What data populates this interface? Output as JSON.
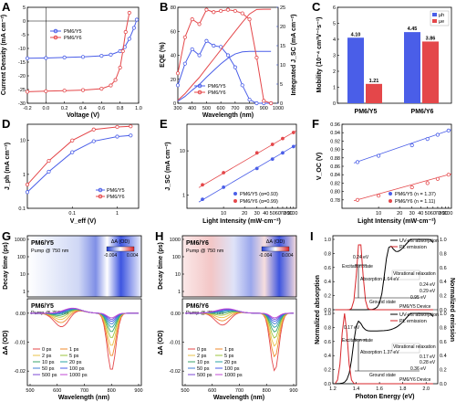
{
  "colors": {
    "pm6y5": "#4a5ee8",
    "pm6y6": "#e4474a"
  },
  "panels": [
    "A",
    "B",
    "C",
    "D",
    "E",
    "F",
    "G",
    "H",
    "I"
  ],
  "chart_data": [
    {
      "id": "A",
      "type": "line",
      "xlabel": "Voltage (V)",
      "ylabel": "Current Density (mA cm⁻²)",
      "xlim": [
        -0.2,
        1.0
      ],
      "ylim": [
        -30,
        5
      ],
      "xticks": [
        "-0.2",
        "0.0",
        "0.2",
        "0.4",
        "0.6",
        "0.8",
        "1.0"
      ],
      "yticks": [
        "5",
        "0",
        "-5",
        "-10",
        "-15",
        "-20",
        "-25",
        "-30"
      ],
      "series": [
        {
          "name": "PM6/Y5",
          "x": [
            -0.2,
            0,
            0.2,
            0.4,
            0.6,
            0.7,
            0.8,
            0.85,
            0.9,
            0.95,
            0.98
          ],
          "y": [
            -13.6,
            -13.5,
            -13.3,
            -13.1,
            -12.7,
            -12.3,
            -11,
            -9.5,
            -6.5,
            -2.5,
            0.5
          ]
        },
        {
          "name": "PM6/Y6",
          "x": [
            -0.2,
            0,
            0.2,
            0.4,
            0.6,
            0.7,
            0.75,
            0.8,
            0.83,
            0.86,
            0.9
          ],
          "y": [
            -25.8,
            -25.6,
            -25.4,
            -25.2,
            -24.7,
            -23.5,
            -21.5,
            -17,
            -11,
            -4,
            3
          ]
        }
      ]
    },
    {
      "id": "B",
      "type": "line",
      "xlabel": "Wavelength (nm)",
      "ylabel": "EQE (%)",
      "y2label": "Integrated J_SC (mA cm⁻²)",
      "xlim": [
        300,
        1000
      ],
      "ylim": [
        0,
        80
      ],
      "y2lim": [
        0,
        25
      ],
      "xticks": [
        "300",
        "400",
        "500",
        "600",
        "700",
        "800",
        "900",
        "1000"
      ],
      "yticks": [
        "0",
        "20",
        "40",
        "60",
        "80"
      ],
      "y2ticks": [
        "0",
        "5",
        "10",
        "15",
        "20",
        "25"
      ],
      "series": [
        {
          "name": "PM6/Y5",
          "x": [
            300,
            350,
            400,
            450,
            500,
            550,
            600,
            650,
            700,
            750,
            800,
            850,
            900,
            950
          ],
          "y": [
            15,
            33,
            45,
            40,
            52,
            48,
            47,
            40,
            30,
            15,
            3,
            0,
            0,
            0
          ]
        },
        {
          "name": "PM6/Y6",
          "x": [
            300,
            350,
            400,
            450,
            500,
            550,
            600,
            650,
            700,
            750,
            800,
            850,
            900,
            950
          ],
          "y": [
            25,
            55,
            70,
            66,
            78,
            76,
            77,
            78,
            77,
            75,
            70,
            38,
            2,
            0
          ]
        }
      ]
    },
    {
      "id": "C",
      "type": "bar",
      "ylabel": "Mobility (10⁻⁴ cm²V⁻¹s⁻¹)",
      "categories": [
        "PM6/Y5",
        "PM6/Y6"
      ],
      "ylim": [
        0,
        6
      ],
      "yticks": [
        "0",
        "1",
        "2",
        "3",
        "4",
        "5",
        "6"
      ],
      "series": [
        {
          "name": "μh",
          "values": [
            4.1,
            4.45
          ]
        },
        {
          "name": "μe",
          "values": [
            1.21,
            3.86
          ]
        }
      ]
    },
    {
      "id": "D",
      "type": "line",
      "xlabel": "V_eff (V)",
      "ylabel": "J_ph (mA cm⁻²)",
      "xlim": [
        0.01,
        3
      ],
      "ylim": [
        0.1,
        30
      ],
      "scale": "log-log",
      "xticks": [
        "0.1",
        "1"
      ],
      "yticks": [
        "0.1",
        "1",
        "10"
      ],
      "series": [
        {
          "name": "PM6/Y5",
          "x": [
            0.01,
            0.03,
            0.1,
            0.3,
            1,
            2
          ],
          "y": [
            0.3,
            1.2,
            4.5,
            9.5,
            13,
            14
          ]
        },
        {
          "name": "PM6/Y6",
          "x": [
            0.01,
            0.03,
            0.1,
            0.3,
            1,
            2
          ],
          "y": [
            0.5,
            2.5,
            10,
            21,
            25,
            26
          ]
        }
      ]
    },
    {
      "id": "E",
      "type": "scatter",
      "xlabel": "Light Intensity (mW·cm⁻²)",
      "ylabel": "J_SC (mA cm⁻²)",
      "xlim": [
        3,
        110
      ],
      "ylim": [
        0.5,
        40
      ],
      "scale": "log-log",
      "xticks": [
        "10",
        "20",
        "30",
        "40",
        "50",
        "60",
        "70",
        "80",
        "90",
        "100"
      ],
      "yticks": [
        "1",
        "10"
      ],
      "series": [
        {
          "name": "PM6/Y5 (α=0.93)",
          "x": [
            5,
            10,
            30,
            50,
            70,
            100
          ],
          "y": [
            0.8,
            1.5,
            4,
            6.5,
            9,
            12.5
          ]
        },
        {
          "name": "PM6/Y6 (α=0.99)",
          "x": [
            5,
            10,
            30,
            50,
            70,
            100
          ],
          "y": [
            1.7,
            3.2,
            9,
            14,
            19,
            26
          ]
        }
      ]
    },
    {
      "id": "F",
      "type": "scatter",
      "xlabel": "Light Intensity (mW·cm⁻²)",
      "ylabel": "V_OC (V)",
      "xlim": [
        3,
        110
      ],
      "ylim": [
        0.76,
        0.96
      ],
      "scale": "log-x",
      "xticks": [
        "10",
        "20",
        "30",
        "40",
        "50",
        "60",
        "70",
        "80",
        "90",
        "100"
      ],
      "yticks": [
        "0.78",
        "0.80",
        "0.82",
        "0.84",
        "0.86",
        "0.88",
        "0.90",
        "0.92",
        "0.94",
        "0.96"
      ],
      "series": [
        {
          "name": "PM6/Y5 (n = 1.37)",
          "x": [
            5,
            10,
            30,
            50,
            70,
            100
          ],
          "y": [
            0.87,
            0.885,
            0.91,
            0.925,
            0.935,
            0.945
          ]
        },
        {
          "name": "PM6/Y6 (n = 1.11)",
          "x": [
            5,
            10,
            30,
            50,
            70,
            100
          ],
          "y": [
            0.78,
            0.79,
            0.81,
            0.82,
            0.83,
            0.84
          ]
        }
      ]
    },
    {
      "id": "G",
      "type": "heatmap",
      "title": "PM6/Y5",
      "subtitle": "Pump @ 750 nm",
      "ylabel_top": "Decay time (ps)",
      "ylabel_bottom": "ΔA (OD)",
      "xlabel": "Wavelength (nm)",
      "xticks": [
        "500",
        "600",
        "700",
        "800",
        "900"
      ],
      "yticks_top": [
        "1000",
        "100",
        "10",
        "1"
      ],
      "yticks_bottom": [
        "0.00",
        "-0.01",
        "-0.02"
      ],
      "colorbar": {
        "label": "ΔA (OD)",
        "min": "-0.004",
        "max": "0.004"
      },
      "legend": [
        "0 ps",
        "1 ps",
        "2 ps",
        "5 ps",
        "10 ps",
        "20 ps",
        "50 ps",
        "100 ps",
        "500 ps",
        "1000 ps"
      ]
    },
    {
      "id": "H",
      "type": "heatmap",
      "title": "PM6/Y6",
      "subtitle": "Pump @ 750 nm",
      "ylabel_top": "Decay time (ps)",
      "ylabel_bottom": "ΔA (OD)",
      "xlabel": "Wavelength (nm)",
      "xticks": [
        "500",
        "600",
        "700",
        "800",
        "900"
      ],
      "yticks_top": [
        "1000",
        "100",
        "10",
        "1"
      ],
      "yticks_bottom": [
        "0.00",
        "-0.01",
        "-0.02"
      ],
      "colorbar": {
        "label": "ΔA (OD)",
        "min": "-0.004",
        "max": "0.004"
      },
      "legend": [
        "0 ps",
        "1 ps",
        "2 ps",
        "5 ps",
        "10 ps",
        "20 ps",
        "50 ps",
        "100 ps",
        "500 ps",
        "1000 ps"
      ]
    },
    {
      "id": "I",
      "type": "line",
      "xlabel": "Photon Energy (eV)",
      "ylabel": "Normalized absorption",
      "y2label": "Normalized emission",
      "xlim": [
        1.2,
        2.1
      ],
      "xticks": [
        "1.2",
        "1.4",
        "1.6",
        "1.8",
        "2.0"
      ],
      "yticks": [
        "0.0",
        "0.2",
        "0.4",
        "0.6",
        "0.8",
        "1.0"
      ],
      "y2ticks": [
        "0.0",
        "0.2",
        "0.4",
        "0.6",
        "0.8",
        "1.0"
      ],
      "legend": [
        "UV-vis absorption",
        "PL emission"
      ],
      "top": {
        "device": "PM6/Y5 Device",
        "labels": [
          "0.24 eV",
          "Excitation state",
          "Absorption 1.64 eV",
          "Vibrational relaxation",
          "0.24 eV",
          "0.29 eV",
          "0.95 eV",
          "Ground state"
        ]
      },
      "bottom": {
        "device": "PM6/Y6 Device",
        "labels": [
          "0.17 eV",
          "Excitation state",
          "Absorption 1.37 eV",
          "Vibrational relaxation",
          "0.17 eV",
          "0.28 eV",
          "0.36 eV",
          "Ground state"
        ]
      }
    }
  ]
}
